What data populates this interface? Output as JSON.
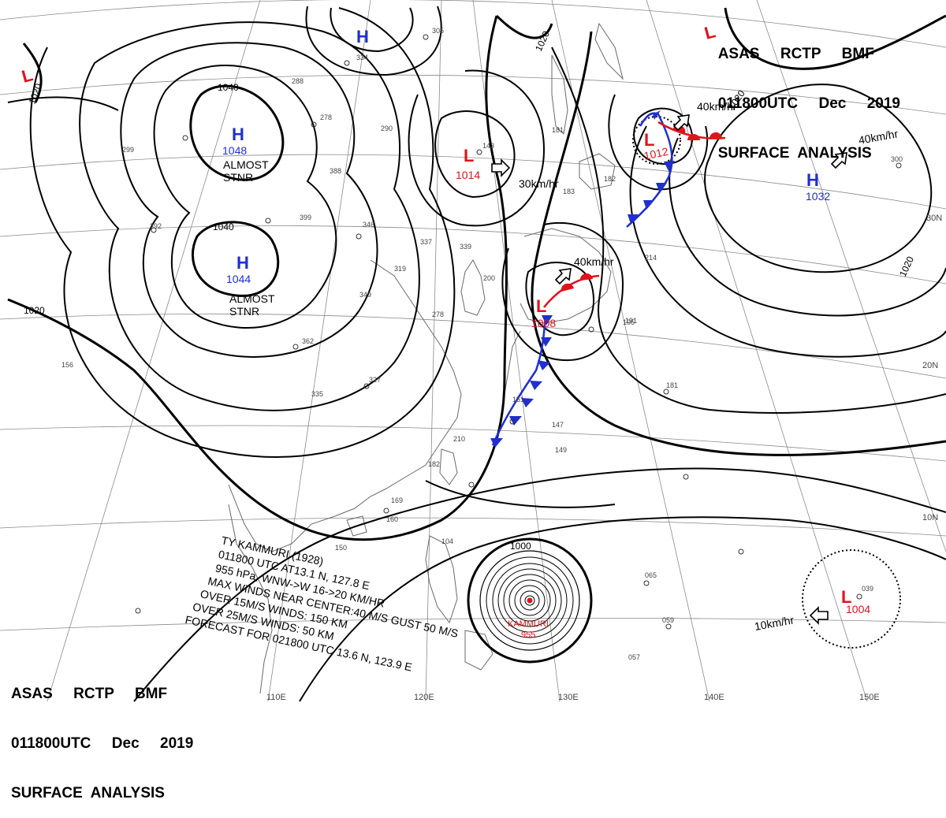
{
  "header": {
    "agency": "ASAS     RCTP     BMF",
    "issued": "011800UTC     Dec     2019",
    "product": "SURFACE  ANALYSIS"
  },
  "lat_labels": [
    "30N",
    "20N",
    "10N"
  ],
  "lon_labels": [
    "110E",
    "120E",
    "130E",
    "140E",
    "150E"
  ],
  "isobar_labels": [
    "1020",
    "1040",
    "1048",
    "1044",
    "1040",
    "1020",
    "1020",
    "1020",
    "1000",
    "1020"
  ],
  "pressure_systems": [
    {
      "type": "H",
      "value": "1048",
      "note": "ALMOST\nSTNR",
      "color": "#1f2fd0"
    },
    {
      "type": "H",
      "value": "1044",
      "note": "ALMOST\nSTNR",
      "color": "#1f2fd0"
    },
    {
      "type": "H",
      "value": "",
      "note": "",
      "color": "#1f2fd0"
    },
    {
      "type": "H",
      "value": "1032",
      "note": "",
      "color": "#1f2fd0"
    },
    {
      "type": "L",
      "value": "1014",
      "note": "",
      "color": "#e0131b"
    },
    {
      "type": "L",
      "value": "1008",
      "note": "",
      "color": "#e0131b"
    },
    {
      "type": "L",
      "value": "1012",
      "note": "",
      "color": "#e0131b"
    },
    {
      "type": "L",
      "value": "1004",
      "note": "",
      "color": "#e0131b"
    },
    {
      "type": "L",
      "value": "",
      "note": "",
      "color": "#e0131b"
    },
    {
      "type": "L",
      "value": "",
      "note": "",
      "color": "#e0131b"
    }
  ],
  "motion_labels": [
    "30km/hr",
    "40km/hr",
    "40km/hr",
    "40km/hr",
    "10km/hr"
  ],
  "typhoon": {
    "name": "KAMMURI",
    "pressure": "955",
    "isobar_label": "1000",
    "bulletin": [
      "TY  KAMMURI  (1928)",
      "011800 UTC  AT13.1 N, 127.8 E",
      "955 hPa, WNW->W  16->20 KM/HR",
      "MAX WINDS NEAR CENTER:40 M/S GUST 50 M/S",
      "OVER 15M/S WINDS: 150 KM",
      "OVER 25M/S WINDS: 50 KM",
      "FORECAST FOR 021800 UTC 13.6 N, 123.9 E"
    ]
  },
  "station_reports": [
    "305",
    "334",
    "288",
    "278",
    "290",
    "388",
    "399",
    "346",
    "392",
    "337",
    "339",
    "319",
    "349",
    "278",
    "362",
    "327",
    "335",
    "143",
    "181",
    "183",
    "182",
    "191",
    "151",
    "147",
    "149",
    "210",
    "182",
    "169",
    "181",
    "156",
    "150",
    "104",
    "065",
    "057",
    "059",
    "039",
    "300",
    "299",
    "214",
    "195",
    "160",
    "200"
  ],
  "colors": {
    "high": "#1f2fd0",
    "low": "#e0131b",
    "isobar": "#000000",
    "coast": "#6a6a6a",
    "grid": "#8a8a8a"
  }
}
